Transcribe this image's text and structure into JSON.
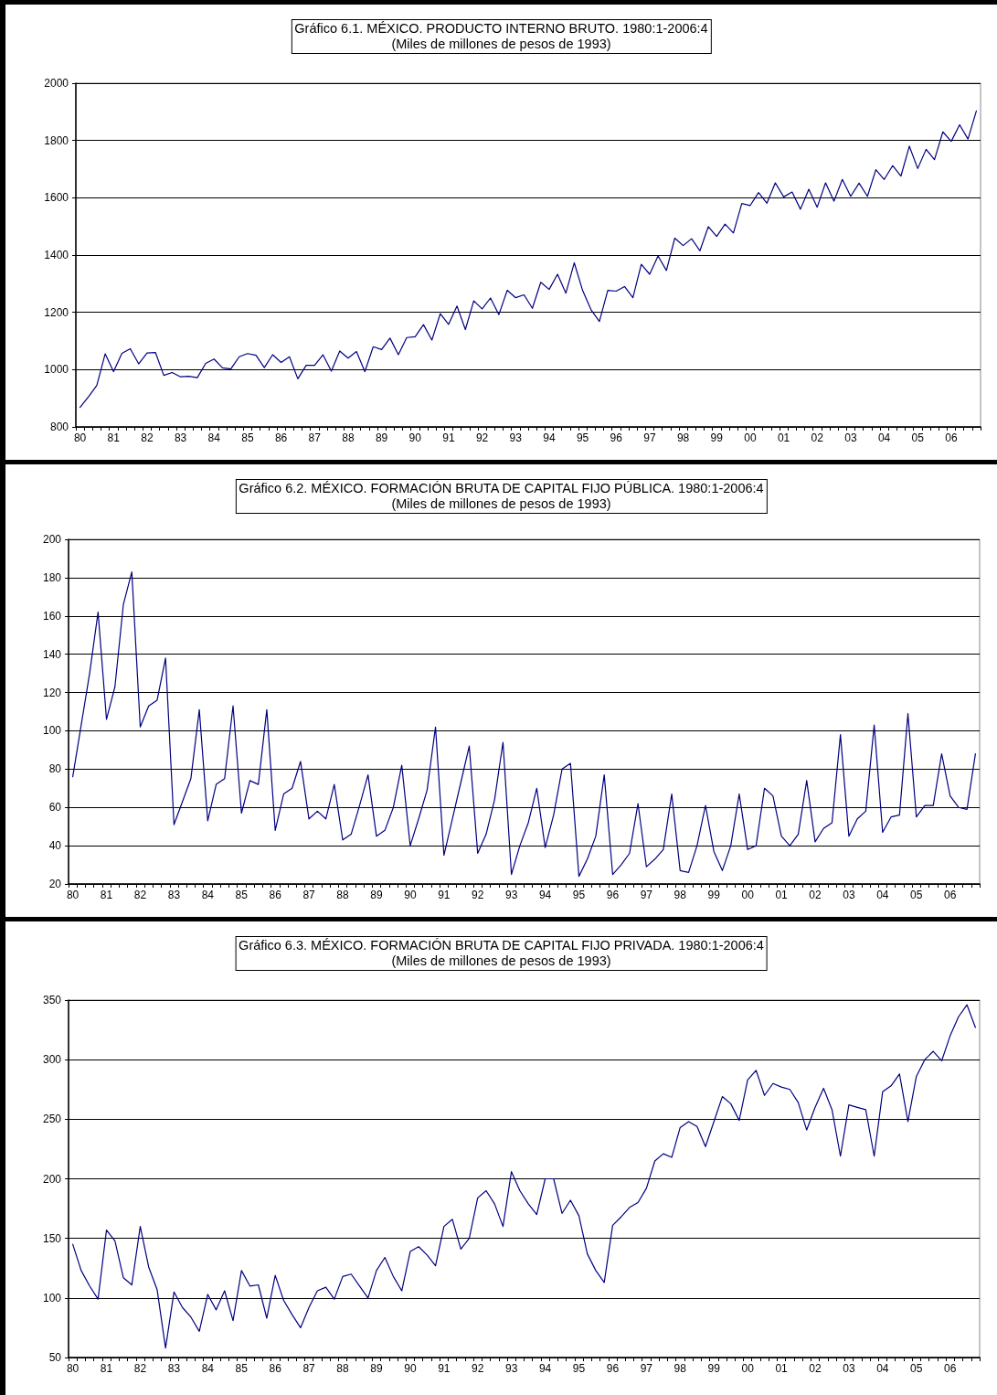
{
  "chart_data": [
    {
      "type": "line",
      "title": "Gráfico 6.1. MÉXICO. PRODUCTO INTERNO BRUTO. 1980:1-2006:4",
      "subtitle": "(Miles de millones de pesos de 1993)",
      "categories": [
        "80",
        null,
        null,
        null,
        "81",
        null,
        null,
        null,
        "82",
        null,
        null,
        null,
        "83",
        null,
        null,
        null,
        "84",
        null,
        null,
        null,
        "85",
        null,
        null,
        null,
        "86",
        null,
        null,
        null,
        "87",
        null,
        null,
        null,
        "88",
        null,
        null,
        null,
        "89",
        null,
        null,
        null,
        "90",
        null,
        null,
        null,
        "91",
        null,
        null,
        null,
        "92",
        null,
        null,
        null,
        "93",
        null,
        null,
        null,
        "94",
        null,
        null,
        null,
        "95",
        null,
        null,
        null,
        "96",
        null,
        null,
        null,
        "97",
        null,
        null,
        null,
        "98",
        null,
        null,
        null,
        "99",
        null,
        null,
        null,
        "00",
        null,
        null,
        null,
        "01",
        null,
        null,
        null,
        "02",
        null,
        null,
        null,
        "03",
        null,
        null,
        null,
        "04",
        null,
        null,
        null,
        "05",
        null,
        null,
        null,
        "06",
        null,
        null,
        null
      ],
      "series": [
        {
          "color": "#000080",
          "values": [
            868,
            905,
            945,
            1055,
            993,
            1057,
            1073,
            1020,
            1058,
            1060,
            980,
            990,
            975,
            977,
            972,
            1022,
            1037,
            1006,
            1002,
            1045,
            1056,
            1050,
            1007,
            1052,
            1025,
            1045,
            968,
            1015,
            1015,
            1052,
            995,
            1065,
            1040,
            1063,
            993,
            1080,
            1070,
            1110,
            1052,
            1112,
            1115,
            1157,
            1103,
            1195,
            1158,
            1222,
            1140,
            1240,
            1212,
            1250,
            1192,
            1277,
            1251,
            1261,
            1214,
            1305,
            1280,
            1333,
            1267,
            1373,
            1276,
            1209,
            1168,
            1277,
            1274,
            1290,
            1251,
            1368,
            1333,
            1397,
            1346,
            1459,
            1433,
            1457,
            1415,
            1499,
            1465,
            1508,
            1477,
            1580,
            1573,
            1618,
            1581,
            1652,
            1603,
            1620,
            1560,
            1630,
            1567,
            1652,
            1588,
            1664,
            1605,
            1651,
            1605,
            1698,
            1664,
            1712,
            1676,
            1780,
            1702,
            1769,
            1733,
            1830,
            1797,
            1855,
            1805,
            1903
          ]
        }
      ],
      "ylim": [
        800,
        2000
      ],
      "yticks": [
        800,
        1000,
        1200,
        1400,
        1600,
        1800,
        2000
      ],
      "grid": "y",
      "marker": "none",
      "line_style": "solid"
    },
    {
      "type": "line",
      "title": "Gráfico 6.2. MÉXICO. FORMACIÓN BRUTA DE CAPITAL FIJO PÚBLICA. 1980:1-2006:4",
      "subtitle": "(Miles de millones de pesos de 1993)",
      "categories": [
        "80",
        null,
        null,
        null,
        "81",
        null,
        null,
        null,
        "82",
        null,
        null,
        null,
        "83",
        null,
        null,
        null,
        "84",
        null,
        null,
        null,
        "85",
        null,
        null,
        null,
        "86",
        null,
        null,
        null,
        "87",
        null,
        null,
        null,
        "88",
        null,
        null,
        null,
        "89",
        null,
        null,
        null,
        "90",
        null,
        null,
        null,
        "91",
        null,
        null,
        null,
        "92",
        null,
        null,
        null,
        "93",
        null,
        null,
        null,
        "94",
        null,
        null,
        null,
        "95",
        null,
        null,
        null,
        "96",
        null,
        null,
        null,
        "97",
        null,
        null,
        null,
        "98",
        null,
        null,
        null,
        "99",
        null,
        null,
        null,
        "00",
        null,
        null,
        null,
        "01",
        null,
        null,
        null,
        "02",
        null,
        null,
        null,
        "03",
        null,
        null,
        null,
        "04",
        null,
        null,
        null,
        "05",
        null,
        null,
        null,
        "06",
        null,
        null,
        null
      ],
      "series": [
        {
          "color": "#000080",
          "values": [
            76,
            103,
            130,
            162,
            106,
            123,
            166,
            183,
            102,
            113,
            116,
            138,
            51,
            63,
            75,
            111,
            53,
            72,
            75,
            113,
            57,
            74,
            72,
            111,
            48,
            67,
            70,
            84,
            54,
            58,
            54,
            72,
            43,
            46,
            61,
            77,
            45,
            48,
            60,
            82,
            40,
            54,
            69,
            102,
            35,
            54,
            73,
            92,
            36,
            46,
            64,
            94,
            25,
            40,
            52,
            70,
            39,
            56,
            80,
            83,
            24,
            33,
            45,
            77,
            25,
            30,
            36,
            62,
            29,
            33,
            38,
            67,
            27,
            26,
            40,
            61,
            37,
            27,
            40,
            67,
            38,
            40,
            70,
            66,
            45,
            40,
            46,
            74,
            42,
            49,
            52,
            98,
            45,
            54,
            58,
            103,
            47,
            55,
            56,
            109,
            55,
            61,
            61,
            88,
            66,
            60,
            59,
            88
          ]
        }
      ],
      "ylim": [
        20,
        200
      ],
      "yticks": [
        20,
        40,
        60,
        80,
        100,
        120,
        140,
        160,
        180,
        200
      ],
      "grid": "y",
      "marker": "none",
      "line_style": "solid"
    },
    {
      "type": "line",
      "title": "Gráfico 6.3. MÉXICO. FORMACIÓN BRUTA DE CAPITAL FIJO PRIVADA. 1980:1-2006:4",
      "subtitle": "(Miles de millones de pesos de 1993)",
      "categories": [
        "80",
        null,
        null,
        null,
        "81",
        null,
        null,
        null,
        "82",
        null,
        null,
        null,
        "83",
        null,
        null,
        null,
        "84",
        null,
        null,
        null,
        "85",
        null,
        null,
        null,
        "86",
        null,
        null,
        null,
        "87",
        null,
        null,
        null,
        "88",
        null,
        null,
        null,
        "89",
        null,
        null,
        null,
        "90",
        null,
        null,
        null,
        "91",
        null,
        null,
        null,
        "92",
        null,
        null,
        null,
        "93",
        null,
        null,
        null,
        "94",
        null,
        null,
        null,
        "95",
        null,
        null,
        null,
        "96",
        null,
        null,
        null,
        "97",
        null,
        null,
        null,
        "98",
        null,
        null,
        null,
        "99",
        null,
        null,
        null,
        "00",
        null,
        null,
        null,
        "01",
        null,
        null,
        null,
        "02",
        null,
        null,
        null,
        "03",
        null,
        null,
        null,
        "04",
        null,
        null,
        null,
        "05",
        null,
        null,
        null,
        "06",
        null,
        null,
        null
      ],
      "series": [
        {
          "color": "#000080",
          "values": [
            145,
            123,
            110,
            99,
            157,
            148,
            117,
            111,
            160,
            126,
            107,
            58,
            105,
            92,
            84,
            72,
            103,
            90,
            106,
            81,
            123,
            110,
            111,
            83,
            119,
            98,
            86,
            75,
            92,
            106,
            109,
            99,
            118,
            120,
            110,
            100,
            123,
            134,
            118,
            106,
            139,
            143,
            136,
            127,
            160,
            166,
            141,
            150,
            184,
            190,
            179,
            160,
            206,
            190,
            179,
            170,
            200,
            200,
            171,
            182,
            169,
            137,
            123,
            113,
            161,
            168,
            176,
            180,
            192,
            215,
            221,
            218,
            243,
            248,
            244,
            227,
            248,
            269,
            263,
            249,
            283,
            291,
            270,
            280,
            277,
            275,
            264,
            241,
            260,
            276,
            258,
            219,
            262,
            260,
            258,
            219,
            273,
            278,
            288,
            248,
            286,
            300,
            307,
            299,
            320,
            336,
            346,
            327
          ]
        }
      ],
      "ylim": [
        50,
        350
      ],
      "yticks": [
        50,
        100,
        150,
        200,
        250,
        300,
        350
      ],
      "grid": "y",
      "marker": "none",
      "line_style": "solid"
    }
  ]
}
